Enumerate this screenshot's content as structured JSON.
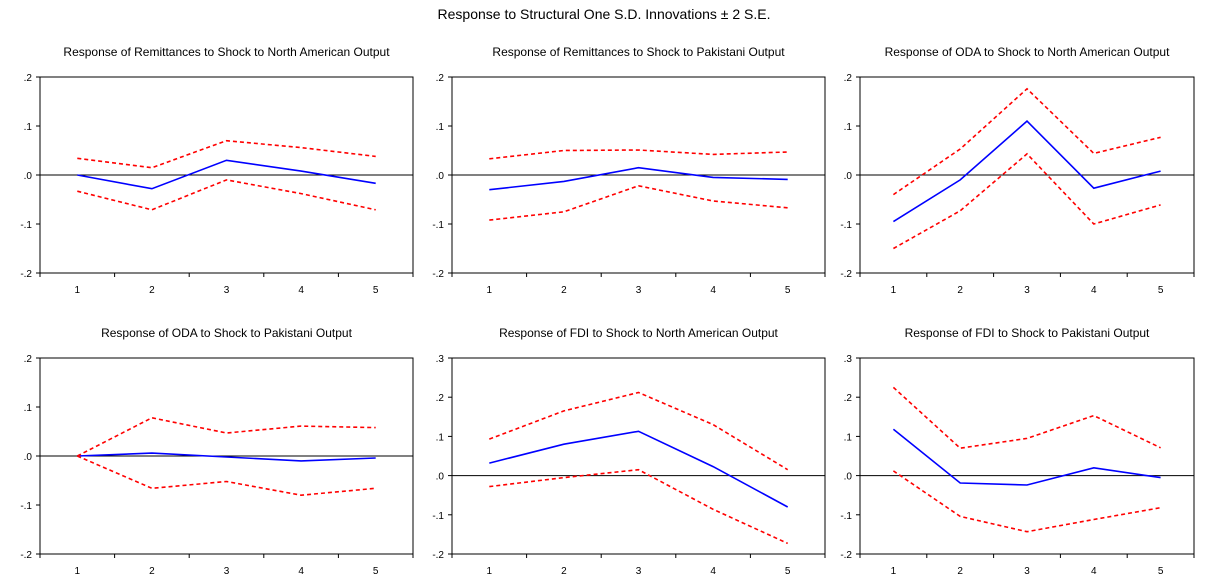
{
  "figure": {
    "title": "Response to Structural One S.D. Innovations ± 2 S.E."
  },
  "colors": {
    "response": "#0000ff",
    "bands": "#ff0000",
    "axis": "#000000"
  },
  "chart_data": [
    {
      "type": "line",
      "title": "Response of Remittances to Shock to North American Output",
      "xlabel": "",
      "ylabel": "",
      "x": [
        1,
        2,
        3,
        4,
        5
      ],
      "ylim": [
        -0.2,
        0.2
      ],
      "yticks": [
        -0.2,
        -0.1,
        0.0,
        0.1,
        0.2
      ],
      "ytick_labels": [
        "-.2",
        "-.1",
        ".0",
        ".1",
        ".2"
      ],
      "grid": false,
      "series": [
        {
          "role": "response",
          "values": [
            0.0,
            -0.028,
            0.03,
            0.008,
            -0.017
          ]
        },
        {
          "role": "upper",
          "values": [
            0.034,
            0.015,
            0.07,
            0.056,
            0.038
          ]
        },
        {
          "role": "lower",
          "values": [
            -0.033,
            -0.071,
            -0.01,
            -0.038,
            -0.071
          ]
        }
      ]
    },
    {
      "type": "line",
      "title": "Response of Remittances to Shock to Pakistani Output",
      "xlabel": "",
      "ylabel": "",
      "x": [
        1,
        2,
        3,
        4,
        5
      ],
      "ylim": [
        -0.2,
        0.2
      ],
      "yticks": [
        -0.2,
        -0.1,
        0.0,
        0.1,
        0.2
      ],
      "ytick_labels": [
        "-.2",
        "-.1",
        ".0",
        ".1",
        ".2"
      ],
      "grid": false,
      "series": [
        {
          "role": "response",
          "values": [
            -0.03,
            -0.013,
            0.015,
            -0.005,
            -0.009
          ]
        },
        {
          "role": "upper",
          "values": [
            0.033,
            0.05,
            0.051,
            0.042,
            0.047
          ]
        },
        {
          "role": "lower",
          "values": [
            -0.092,
            -0.075,
            -0.022,
            -0.053,
            -0.067
          ]
        }
      ]
    },
    {
      "type": "line",
      "title": "Response of ODA to Shock to North American Output",
      "xlabel": "",
      "ylabel": "",
      "x": [
        1,
        2,
        3,
        4,
        5
      ],
      "ylim": [
        -0.2,
        0.2
      ],
      "yticks": [
        -0.2,
        -0.1,
        0.0,
        0.1,
        0.2
      ],
      "ytick_labels": [
        "-.2",
        "-.1",
        ".0",
        ".1",
        ".2"
      ],
      "grid": false,
      "series": [
        {
          "role": "response",
          "values": [
            -0.095,
            -0.01,
            0.11,
            -0.027,
            0.008
          ]
        },
        {
          "role": "upper",
          "values": [
            -0.04,
            0.053,
            0.176,
            0.044,
            0.077
          ]
        },
        {
          "role": "lower",
          "values": [
            -0.15,
            -0.073,
            0.043,
            -0.1,
            -0.061
          ]
        }
      ]
    },
    {
      "type": "line",
      "title": "Response of ODA to Shock to Pakistani Output",
      "xlabel": "",
      "ylabel": "",
      "x": [
        1,
        2,
        3,
        4,
        5
      ],
      "ylim": [
        -0.2,
        0.2
      ],
      "yticks": [
        -0.2,
        -0.1,
        0.0,
        0.1,
        0.2
      ],
      "ytick_labels": [
        "-.2",
        "-.1",
        ".0",
        ".1",
        ".2"
      ],
      "grid": false,
      "series": [
        {
          "role": "response",
          "values": [
            0.0,
            0.006,
            -0.002,
            -0.01,
            -0.004
          ]
        },
        {
          "role": "upper",
          "values": [
            0.0,
            0.078,
            0.047,
            0.061,
            0.058
          ]
        },
        {
          "role": "lower",
          "values": [
            0.0,
            -0.066,
            -0.052,
            -0.08,
            -0.066
          ]
        }
      ]
    },
    {
      "type": "line",
      "title": "Response of FDI to Shock to North American Output",
      "xlabel": "",
      "ylabel": "",
      "x": [
        1,
        2,
        3,
        4,
        5
      ],
      "ylim": [
        -0.2,
        0.3
      ],
      "yticks": [
        -0.2,
        -0.1,
        0.0,
        0.1,
        0.2,
        0.3
      ],
      "ytick_labels": [
        "-.2",
        "-.1",
        ".0",
        ".1",
        ".2",
        ".3"
      ],
      "grid": false,
      "series": [
        {
          "role": "response",
          "values": [
            0.032,
            0.08,
            0.113,
            0.023,
            -0.08
          ]
        },
        {
          "role": "upper",
          "values": [
            0.093,
            0.165,
            0.212,
            0.13,
            0.015
          ]
        },
        {
          "role": "lower",
          "values": [
            -0.028,
            -0.005,
            0.015,
            -0.086,
            -0.173
          ]
        }
      ]
    },
    {
      "type": "line",
      "title": "Response of FDI to Shock to Pakistani Output",
      "xlabel": "",
      "ylabel": "",
      "x": [
        1,
        2,
        3,
        4,
        5
      ],
      "ylim": [
        -0.2,
        0.3
      ],
      "yticks": [
        -0.2,
        -0.1,
        0.0,
        0.1,
        0.2,
        0.3
      ],
      "ytick_labels": [
        "-.2",
        "-.1",
        ".0",
        ".1",
        ".2",
        ".3"
      ],
      "grid": false,
      "series": [
        {
          "role": "response",
          "values": [
            0.118,
            -0.019,
            -0.024,
            0.02,
            -0.005
          ]
        },
        {
          "role": "upper",
          "values": [
            0.225,
            0.07,
            0.095,
            0.153,
            0.071
          ]
        },
        {
          "role": "lower",
          "values": [
            0.012,
            -0.104,
            -0.143,
            -0.112,
            -0.082
          ]
        }
      ]
    }
  ]
}
